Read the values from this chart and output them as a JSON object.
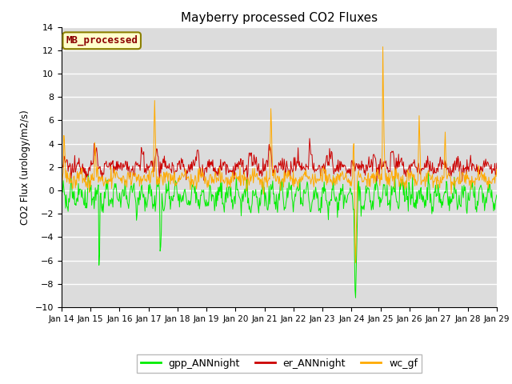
{
  "title": "Mayberry processed CO2 Fluxes",
  "ylabel": "CO2 Flux (urology/m2/s)",
  "legend_label": "MB_processed",
  "legend_box_color": "#ffffcc",
  "legend_box_edge": "#8B8000",
  "legend_label_color": "#8B0000",
  "background_color": "#dcdcdc",
  "ylim": [
    -10,
    14
  ],
  "yticks": [
    -10,
    -8,
    -6,
    -4,
    -2,
    0,
    2,
    4,
    6,
    8,
    10,
    12,
    14
  ],
  "series": {
    "gpp_ANNnight": {
      "color": "#00ee00",
      "linewidth": 0.7
    },
    "er_ANNnight": {
      "color": "#cc0000",
      "linewidth": 0.7
    },
    "wc_gf": {
      "color": "#ffaa00",
      "linewidth": 0.7
    }
  },
  "n_points": 720,
  "seed": 12345,
  "x_start_day": 14,
  "x_end_day": 29,
  "xtick_days": [
    14,
    15,
    16,
    17,
    18,
    19,
    20,
    21,
    22,
    23,
    24,
    25,
    26,
    27,
    28,
    29
  ]
}
